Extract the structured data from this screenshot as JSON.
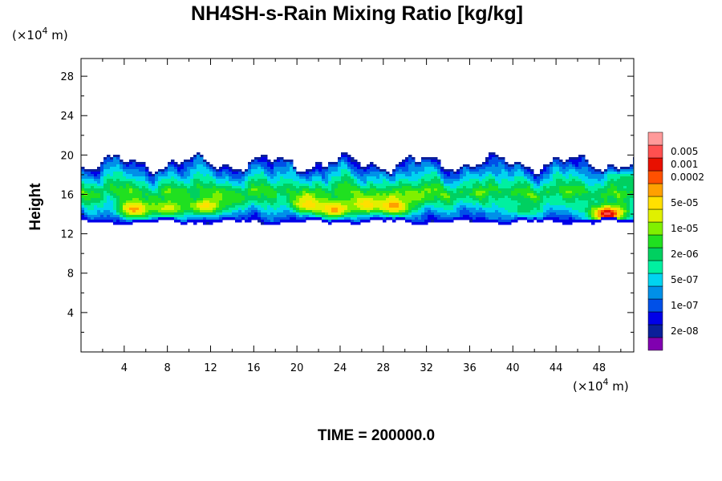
{
  "chart_data": {
    "type": "heatmap",
    "title": "NH4SH-s-Rain Mixing Ratio [kg/kg]",
    "ylabel": "Height",
    "xlabel": "",
    "x_unit": "(×10⁴ m)",
    "y_unit": "(×10⁴ m)",
    "x_unit_parts": [
      "(×10",
      "4",
      " m)"
    ],
    "y_unit_parts": [
      "(×10",
      "4",
      " m)"
    ],
    "xlim": [
      0,
      51.2
    ],
    "ylim": [
      0,
      29.8
    ],
    "x_ticks": [
      4,
      8,
      12,
      16,
      20,
      24,
      28,
      32,
      36,
      40,
      44,
      48
    ],
    "y_ticks": [
      4,
      8,
      12,
      16,
      20,
      24,
      28
    ],
    "footer": "TIME = 200000.0",
    "colorbar": {
      "colors": [
        "#8000b0",
        "#0a1f9a",
        "#0000e8",
        "#0050e8",
        "#0090e8",
        "#00d4f0",
        "#00f0a0",
        "#00d060",
        "#20e020",
        "#80f000",
        "#e0f000",
        "#ffe000",
        "#ffa000",
        "#ff5000",
        "#e81000",
        "#ff5050",
        "#ff9a9a"
      ],
      "labels": [
        "2e-08",
        "1e-07",
        "5e-07",
        "2e-06",
        "1e-05",
        "5e-05",
        "0.0002",
        "0.001",
        "0.005"
      ],
      "label_slots": [
        1,
        3,
        5,
        7,
        9,
        11,
        13,
        14,
        15
      ]
    },
    "field": {
      "band_bottom_km": 13.2,
      "band_top_km": 20.0,
      "blobs": [
        {
          "x": 5.0,
          "y": 14.5,
          "level": 12
        },
        {
          "x": 8.0,
          "y": 14.6,
          "level": 10
        },
        {
          "x": 11.5,
          "y": 14.8,
          "level": 11
        },
        {
          "x": 14.0,
          "y": 15.5,
          "level": 8
        },
        {
          "x": 21.0,
          "y": 15.0,
          "level": 11
        },
        {
          "x": 23.5,
          "y": 14.5,
          "level": 12
        },
        {
          "x": 26.5,
          "y": 15.0,
          "level": 11
        },
        {
          "x": 29.0,
          "y": 14.8,
          "level": 12
        },
        {
          "x": 31.0,
          "y": 15.8,
          "level": 9
        },
        {
          "x": 37.0,
          "y": 16.2,
          "level": 6
        },
        {
          "x": 41.0,
          "y": 14.5,
          "level": 7
        },
        {
          "x": 44.5,
          "y": 15.5,
          "level": 6
        },
        {
          "x": 48.8,
          "y": 14.0,
          "level": 15
        },
        {
          "x": 50.5,
          "y": 17.5,
          "level": 7
        }
      ]
    }
  }
}
